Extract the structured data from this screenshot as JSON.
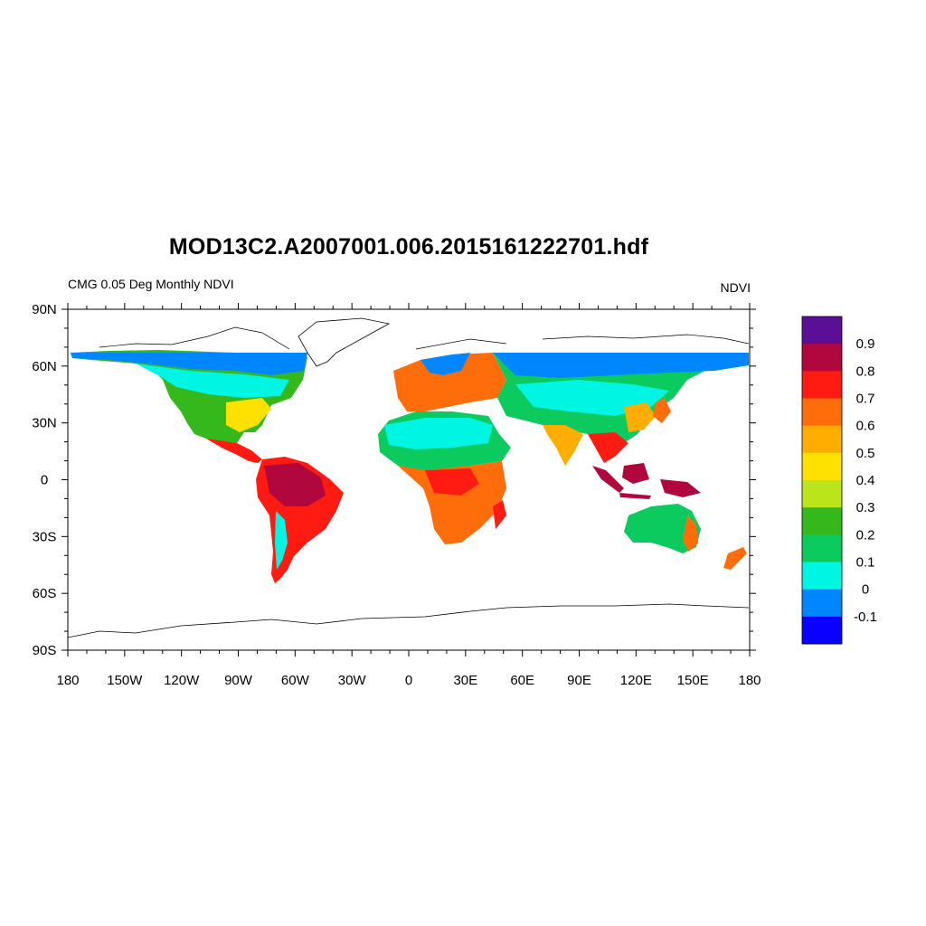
{
  "title": "MOD13C2.A2007001.006.2015161222701.hdf",
  "subtitle_left": "CMG 0.05 Deg Monthly NDVI",
  "subtitle_right": "NDVI",
  "map": {
    "projection": "cylindrical-equidistant",
    "lon_range": [
      -180,
      180
    ],
    "lat_range": [
      -90,
      90
    ],
    "x_tick_labels": [
      "180",
      "150W",
      "120W",
      "90W",
      "60W",
      "30W",
      "0",
      "30E",
      "60E",
      "90E",
      "120E",
      "150E",
      "180"
    ],
    "y_tick_labels": [
      "90N",
      "60N",
      "30N",
      "0",
      "30S",
      "60S",
      "90S"
    ],
    "data_lat_coverage": [
      -60,
      67
    ]
  },
  "colorbar": {
    "labels": [
      "0.9",
      "0.8",
      "0.7",
      "0.6",
      "0.5",
      "0.4",
      "0.3",
      "0.2",
      "0.1",
      "0",
      "-0.1"
    ],
    "colors": [
      "#5a0f96",
      "#b0073e",
      "#ff1a12",
      "#ff6d0a",
      "#ffad00",
      "#ffe100",
      "#b9e51a",
      "#35b81c",
      "#0ccb5e",
      "#00f5e2",
      "#0087ff",
      "#0a00ff"
    ]
  }
}
